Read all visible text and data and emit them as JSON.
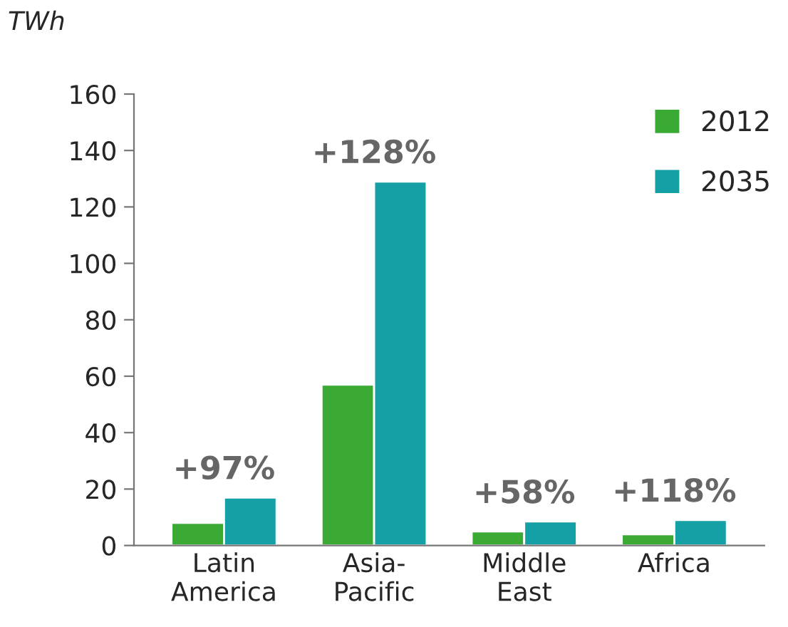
{
  "chart_data": {
    "type": "bar",
    "ylabel": "TWh",
    "categories": [
      "Latin\nAmerica",
      "Asia-\nPacific",
      "Middle\nEast",
      "Africa"
    ],
    "series": [
      {
        "name": "2012",
        "color": "#3aaa35",
        "values": [
          8,
          57,
          5,
          4
        ]
      },
      {
        "name": "2035",
        "color": "#14a0a5",
        "values": [
          17,
          129,
          8.5,
          9
        ]
      }
    ],
    "annotations": [
      "+97%",
      "+128%",
      "+58%",
      "+118%"
    ],
    "ylim": [
      0,
      160
    ],
    "yticks": [
      0,
      20,
      40,
      60,
      80,
      100,
      120,
      140,
      160
    ],
    "grid": false,
    "legend": "top right"
  }
}
